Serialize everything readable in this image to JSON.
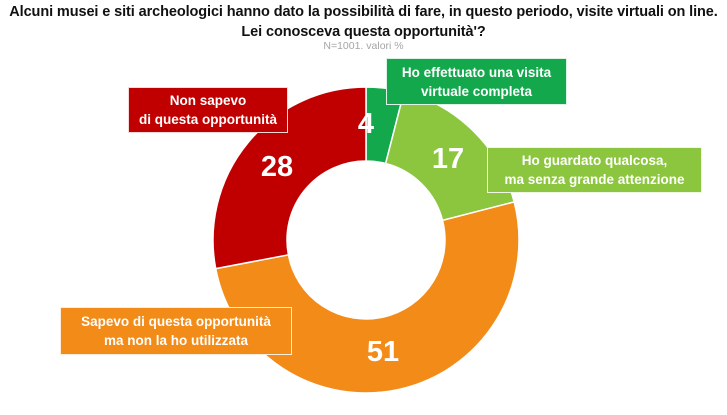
{
  "header": {
    "title_line1": "Alcuni musei e siti archeologici hanno dato la possibilità di fare, in questo periodo, visite virtuali on line.",
    "title_line2": "Lei conosceva questa opportunità'?",
    "subtitle": "N=1001. valori %"
  },
  "labels": {
    "completa": "Ho effettuato una visita virtuale completa",
    "completa_l1": "Ho effettuato una visita",
    "completa_l2": "virtuale completa",
    "guardato_l1": "Ho guardato qualcosa,",
    "guardato_l2": "ma senza grande attenzione",
    "sapevo_l1": "Sapevo di questa opportunità",
    "sapevo_l2": "ma non la ho utilizzata",
    "non_l1": "Non sapevo",
    "non_l2": "di questa opportunità"
  },
  "values": {
    "completa": "4",
    "guardato": "17",
    "sapevo": "51",
    "non": "28"
  },
  "chart_data": {
    "type": "pie",
    "variant": "donut",
    "title": "Alcuni musei e siti archeologici hanno dato la possibilità di fare, in questo periodo, visite virtuali on line. Lei conosceva questa opportunità'?",
    "subtitle": "N=1001. valori %",
    "start_angle": "12 o'clock, clockwise",
    "categories": [
      "Ho effettuato una visita virtuale completa",
      "Ho guardato qualcosa, ma senza grande attenzione",
      "Sapevo di questa opportunità ma non la ho utilizzata",
      "Non sapevo di questa opportunità"
    ],
    "values": [
      4,
      17,
      51,
      28
    ],
    "colors": [
      "#14a84d",
      "#8cc63f",
      "#f28b17",
      "#c00000"
    ],
    "legend": "none (callout labels)"
  }
}
